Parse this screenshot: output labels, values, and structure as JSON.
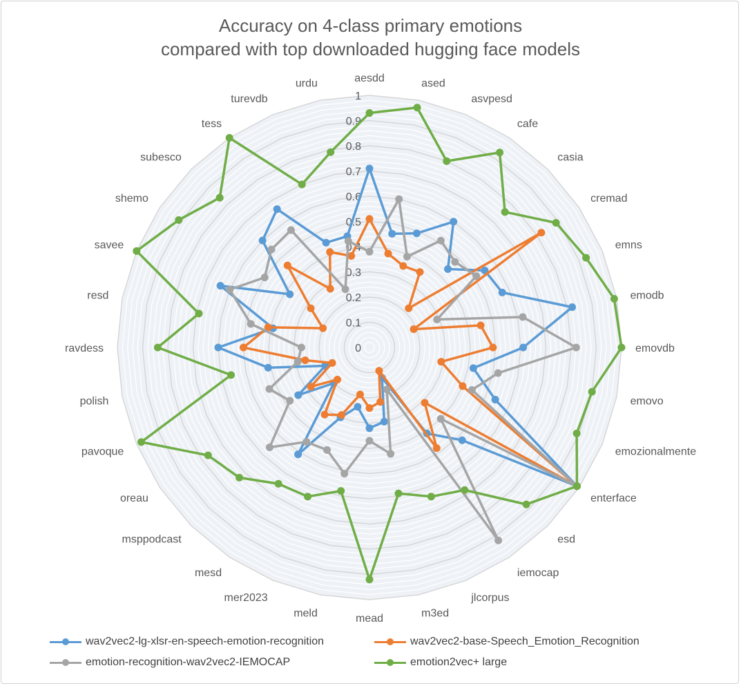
{
  "chart_data": {
    "type": "radar",
    "title": "Accuracy on 4-class primary emotions compared with top downloaded hugging face models",
    "title_lines": [
      "Accuracy on 4-class primary emotions",
      "compared with top downloaded hugging face models"
    ],
    "categories": [
      "aesdd",
      "ased",
      "asvpesd",
      "cafe",
      "casia",
      "cremad",
      "emns",
      "emodb",
      "emovdb",
      "emovo",
      "emozionalmente",
      "enterface",
      "esd",
      "iemocap",
      "jlcorpus",
      "m3ed",
      "mead",
      "meld",
      "mer2023",
      "mesd",
      "msppodcast",
      "oreau",
      "pavoque",
      "polish",
      "ravdess",
      "resd",
      "savee",
      "shemo",
      "subesco",
      "tess",
      "turevdb",
      "urdu"
    ],
    "rlim": [
      0,
      1
    ],
    "ticks": [
      "0",
      "0.1",
      "0.2",
      "0.3",
      "0.4",
      "0.5",
      "0.6",
      "0.7",
      "0.8",
      "0.9",
      "1"
    ],
    "grid": true,
    "legend_position": "bottom",
    "series": [
      {
        "name": "wav2vec2-lg-xlsr-en-speech-emotion-recognition",
        "color": "#5b9bd5",
        "values": [
          0.71,
          0.46,
          0.49,
          0.6,
          0.44,
          0.55,
          0.57,
          0.82,
          0.61,
          0.42,
          0.54,
          0.99,
          0.52,
          0.41,
          0.13,
          0.3,
          0.32,
          0.24,
          0.3,
          0.51,
          0.2,
          0.34,
          0.19,
          0.41,
          0.6,
          0.39,
          0.64,
          0.38,
          0.6,
          0.66,
          0.45,
          0.45
        ]
      },
      {
        "name": "wav2vec2-base-Speech_Emotion_Recognition",
        "color": "#ed7d31",
        "values": [
          0.51,
          0.38,
          0.35,
          0.36,
          0.22,
          0.82,
          0.19,
          0.45,
          0.49,
          0.29,
          0.4,
          0.99,
          0.31,
          0.48,
          0.1,
          0.22,
          0.24,
          0.19,
          0.29,
          0.32,
          0.18,
          0.28,
          0.16,
          0.26,
          0.5,
          0.41,
          0.2,
          0.28,
          0.46,
          0.28,
          0.41,
          0.37
        ]
      },
      {
        "name": "emotion-recognition-wav2vec2-IEMOCAP",
        "color": "#a5a5a5",
        "values": [
          0.38,
          0.6,
          0.39,
          0.51,
          0.48,
          0.51,
          0.29,
          0.62,
          0.82,
          0.52,
          0.44,
          0.99,
          0.4,
          0.92,
          0.18,
          0.43,
          0.37,
          0.51,
          0.44,
          0.45,
          0.56,
          0.38,
          0.43,
          0.29,
          0.27,
          0.48,
          0.6,
          0.5,
          0.55,
          0.56,
          0.25,
          0.43
        ]
      },
      {
        "name": "emotion2vec+ large",
        "color": "#70ad47",
        "values": [
          0.93,
          0.97,
          0.8,
          0.93,
          0.76,
          0.89,
          0.93,
          0.99,
          1.0,
          0.9,
          0.89,
          0.99,
          0.88,
          0.68,
          0.64,
          0.59,
          0.92,
          0.58,
          0.64,
          0.65,
          0.73,
          0.77,
          0.98,
          0.56,
          0.84,
          0.69,
          1.0,
          0.91,
          0.84,
          1.0,
          0.7,
          0.79
        ]
      }
    ]
  }
}
